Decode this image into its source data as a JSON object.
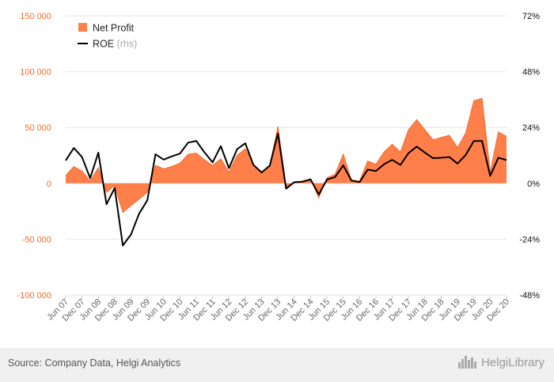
{
  "colors": {
    "area_fill": "#ff7f4a",
    "area_stroke": "#f26a2a",
    "roe_line": "#000000",
    "left_axis_text": "#f26a2a",
    "right_axis_text": "#111111",
    "grid": "#e6e6e6",
    "footer_bg": "#f0f0f0"
  },
  "footer": {
    "source": "Source: Company Data, Helgi Analytics",
    "brand": "HelgiLibrary",
    "brand_icon": "city-skyline-icon"
  },
  "chart_data": {
    "type": "area",
    "legend_placement": "top-left",
    "grid": true,
    "categories": [
      "Jun 07",
      "Sep 07",
      "Dec 07",
      "Mar 08",
      "Jun 08",
      "Sep 08",
      "Dec 08",
      "Mar 09",
      "Jun 09",
      "Sep 09",
      "Dec 09",
      "Mar 10",
      "Jun 10",
      "Sep 10",
      "Dec 10",
      "Mar 11",
      "Jun 11",
      "Sep 11",
      "Dec 11",
      "Mar 12",
      "Jun 12",
      "Sep 12",
      "Dec 12",
      "Mar 13",
      "Jun 13",
      "Sep 13",
      "Dec 13",
      "Mar 14",
      "Jun 14",
      "Sep 14",
      "Dec 14",
      "Mar 15",
      "Jun 15",
      "Sep 15",
      "Dec 15",
      "Mar 16",
      "Jun 16",
      "Sep 16",
      "Dec 16",
      "Mar 17",
      "Jun 17",
      "Sep 17",
      "Dec 17",
      "Mar 18",
      "Jun 18",
      "Sep 18",
      "Dec 18",
      "Mar 19",
      "Jun 19",
      "Sep 19",
      "Dec 19",
      "Mar 20",
      "Jun 20",
      "Sep 20",
      "Dec 20"
    ],
    "x_tick_labels": [
      "Jun 07",
      "Dec 07",
      "Jun 08",
      "Dec 08",
      "Jun 09",
      "Dec 09",
      "Jun 10",
      "Dec 10",
      "Jun 11",
      "Dec 11",
      "Jun 12",
      "Dec 12",
      "Jun 13",
      "Dec 13",
      "Jun 14",
      "Dec 14",
      "Jun 15",
      "Dec 15",
      "Jun 16",
      "Dec 16",
      "Jun 17",
      "Dec 17",
      "Jun 18",
      "Dec 18",
      "Jun 19",
      "Dec 19",
      "Jun 20",
      "Dec 20"
    ],
    "left_axis": {
      "ylim": [
        -100000,
        150000
      ],
      "ticks": [
        -100000,
        -50000,
        0,
        50000,
        100000,
        150000
      ],
      "tick_labels": [
        "-100 000",
        "-50 000",
        "0",
        "50 000",
        "100 000",
        "150 000"
      ]
    },
    "right_axis": {
      "ylim": [
        -48,
        72
      ],
      "ticks": [
        -48,
        -24,
        0,
        24,
        48,
        72
      ],
      "tick_labels": [
        "-48%",
        "-24%",
        "0%",
        "24%",
        "48%",
        "72%"
      ]
    },
    "series": [
      {
        "name": "Net Profit",
        "axis": "left",
        "kind": "area",
        "values": [
          7000,
          15000,
          11000,
          2000,
          14000,
          -8000,
          -2000,
          -26000,
          -20000,
          -14000,
          -8000,
          16000,
          13000,
          15000,
          18000,
          26000,
          27000,
          21000,
          16000,
          22000,
          10000,
          25000,
          31000,
          17000,
          10000,
          16000,
          51000,
          -3000,
          1000,
          2000,
          4000,
          -13000,
          5000,
          8000,
          26000,
          3000,
          2000,
          20000,
          17000,
          28000,
          35000,
          28000,
          48000,
          57000,
          48000,
          39000,
          41000,
          43000,
          32000,
          45000,
          74000,
          76000,
          10000,
          46000,
          42000
        ]
      },
      {
        "name": "ROE",
        "name_suffix": "(rhs)",
        "axis": "right",
        "kind": "line",
        "values": [
          9.8,
          15.2,
          11.3,
          2.2,
          13.2,
          -9.0,
          -2.0,
          -26.7,
          -22.0,
          -13.0,
          -7.3,
          12.5,
          10.2,
          11.6,
          12.8,
          17.5,
          18.2,
          13.3,
          9.0,
          16.0,
          6.5,
          14.7,
          17.2,
          7.9,
          4.7,
          7.6,
          21.4,
          -2.3,
          0.5,
          0.7,
          1.7,
          -4.8,
          1.6,
          2.7,
          7.7,
          1.2,
          0.5,
          5.9,
          5.3,
          8.2,
          10.1,
          7.9,
          13.0,
          15.8,
          13.2,
          10.8,
          11.0,
          11.3,
          8.5,
          12.2,
          18.2,
          18.2,
          3.2,
          11.0,
          10.0
        ]
      }
    ]
  }
}
